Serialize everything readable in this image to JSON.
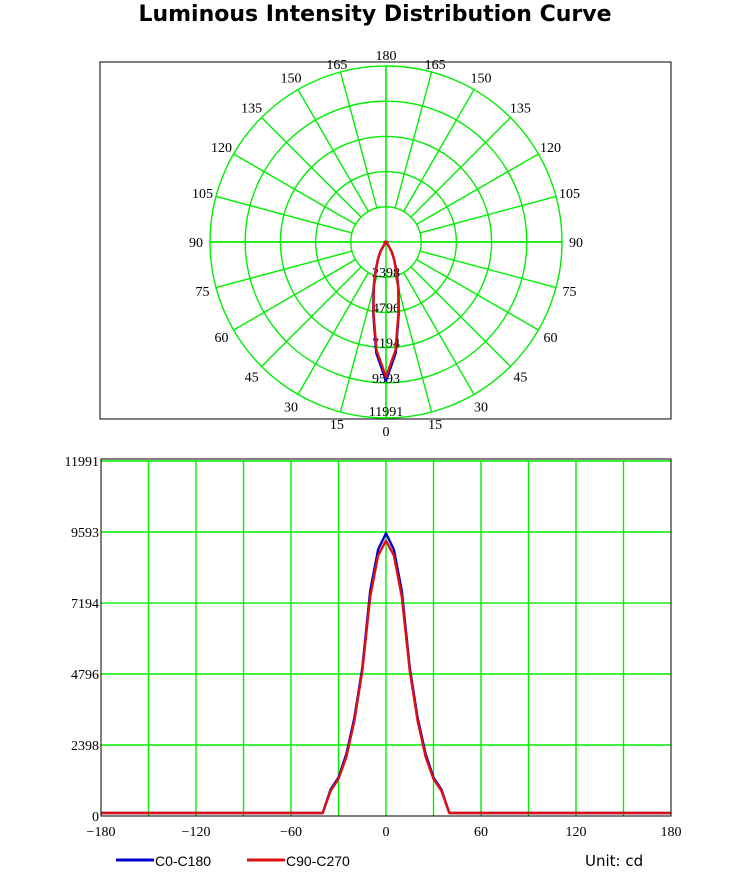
{
  "title": "Luminous Intensity Distribution Curve",
  "unit_label": "Unit: cd",
  "colors": {
    "grid": "#00ee00",
    "c0": "#0000cc",
    "c90": "#dd1111",
    "frame": "#000000"
  },
  "chart_data": [
    {
      "type": "polar",
      "angle_labels": [
        "180",
        "165",
        "150",
        "135",
        "120",
        "105",
        "90",
        "75",
        "60",
        "45",
        "30",
        "15",
        "0"
      ],
      "radial_ticks": [
        2398,
        4796,
        7194,
        9593,
        11991
      ],
      "radial_labels": [
        "2398",
        "4796",
        "7194",
        "9593",
        "11991"
      ],
      "rmax": 11991,
      "series": [
        {
          "name": "C0-C180",
          "angles": [
            -90,
            -40,
            -35,
            -30,
            -25,
            -20,
            -15,
            -10,
            -5,
            0,
            5,
            10,
            15,
            20,
            25,
            30,
            35,
            40,
            90
          ],
          "values": [
            100,
            100,
            200,
            800,
            1300,
            2100,
            3300,
            5000,
            7600,
            9450,
            7600,
            5000,
            3300,
            2100,
            1300,
            800,
            200,
            100,
            100
          ]
        },
        {
          "name": "C90-C270",
          "angles": [
            -90,
            -40,
            -35,
            -30,
            -25,
            -20,
            -15,
            -10,
            -5,
            0,
            5,
            10,
            15,
            20,
            25,
            30,
            35,
            40,
            90
          ],
          "values": [
            100,
            100,
            200,
            750,
            1250,
            2000,
            3200,
            4900,
            7400,
            9200,
            7400,
            4900,
            3200,
            2000,
            1250,
            750,
            200,
            100,
            100
          ]
        }
      ]
    },
    {
      "type": "line",
      "xlim": [
        -180,
        180
      ],
      "ylim": [
        0,
        11991
      ],
      "x_ticks": [
        -180,
        -120,
        -60,
        0,
        60,
        120,
        180
      ],
      "x_tick_labels": [
        "−180",
        "−120",
        "−60",
        "0",
        "60",
        "120",
        "180"
      ],
      "y_ticks": [
        0,
        2398,
        4796,
        7194,
        9593,
        11991
      ],
      "y_tick_labels": [
        "0",
        "2398",
        "4796",
        "7194",
        "9593",
        "11991"
      ],
      "series": [
        {
          "name": "C0-C180",
          "x": [
            -180,
            -40,
            -35,
            -30,
            -25,
            -20,
            -15,
            -10,
            -5,
            0,
            5,
            10,
            15,
            20,
            25,
            30,
            35,
            40,
            180
          ],
          "y": [
            100,
            100,
            900,
            1300,
            2100,
            3300,
            5000,
            7600,
            9000,
            9550,
            9000,
            7600,
            5000,
            3300,
            2100,
            1300,
            900,
            100,
            100
          ]
        },
        {
          "name": "C90-C270",
          "x": [
            -180,
            -40,
            -35,
            -30,
            -25,
            -20,
            -15,
            -10,
            -5,
            0,
            5,
            10,
            15,
            20,
            25,
            30,
            35,
            40,
            180
          ],
          "y": [
            100,
            100,
            850,
            1250,
            2000,
            3200,
            4900,
            7400,
            8800,
            9300,
            8800,
            7400,
            4900,
            3200,
            2000,
            1250,
            850,
            100,
            100
          ]
        }
      ]
    }
  ]
}
